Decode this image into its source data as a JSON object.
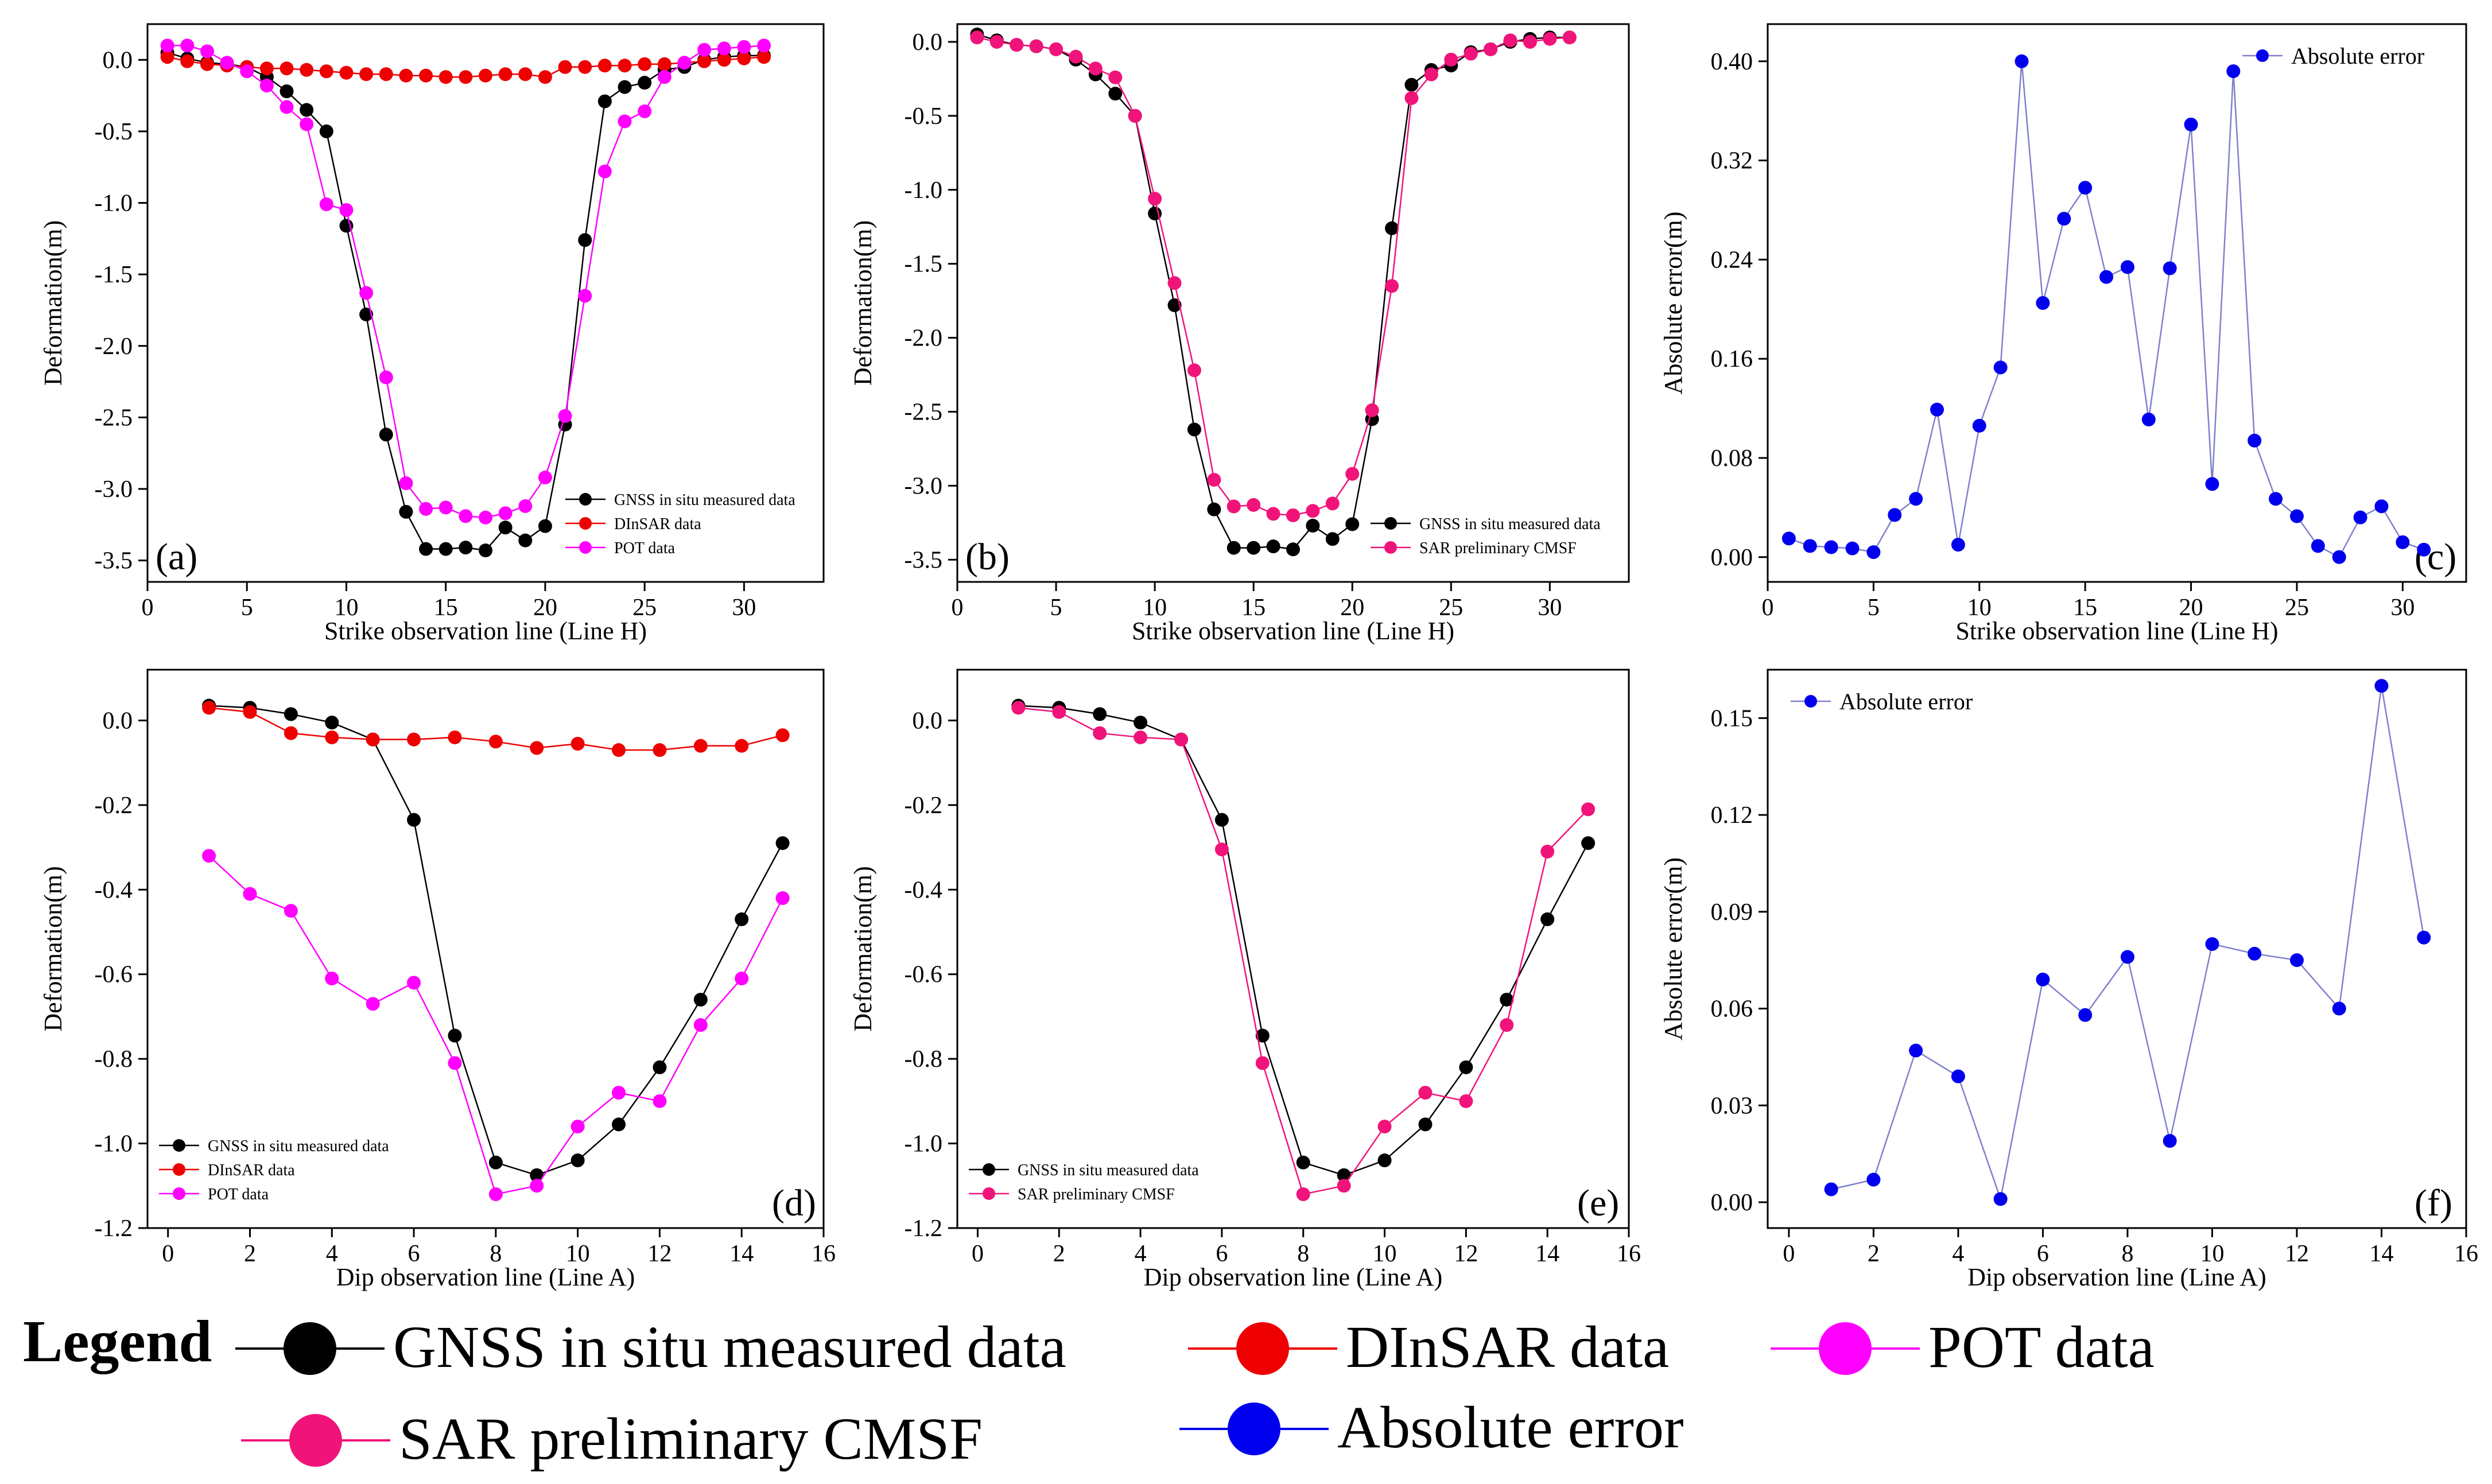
{
  "colors": {
    "gnss": "#000000",
    "dinsar": "#ee0000",
    "pot": "#ff00ff",
    "cmsf": "#f0147a",
    "abs_error": "#0000ee",
    "abs_error_line": "#8080cc"
  },
  "legend": {
    "title": "Legend",
    "entries": [
      {
        "label": "GNSS in situ measured data",
        "color": "#000000"
      },
      {
        "label": "DInSAR data",
        "color": "#ee0000"
      },
      {
        "label": "POT data",
        "color": "#ff00ff"
      },
      {
        "label": "SAR preliminary CMSF",
        "color": "#f0147a"
      },
      {
        "label": "Absolute error",
        "color": "#0000ee"
      }
    ]
  },
  "chart_data": [
    {
      "panel": "(a)",
      "type": "line",
      "xlabel": "Strike observation line (Line H)",
      "ylabel": "Deformation(m)",
      "xlim": [
        0,
        34
      ],
      "ylim": [
        -3.65,
        0.25
      ],
      "xticks": [
        0,
        5,
        10,
        15,
        20,
        25,
        30
      ],
      "yticks": [
        0.0,
        -0.5,
        -1.0,
        -1.5,
        -2.0,
        -2.5,
        -3.0,
        -3.5
      ],
      "ytick_decimals": 1,
      "legend_position": "bottom-right",
      "x": [
        1,
        2,
        3,
        4,
        5,
        6,
        7,
        8,
        9,
        10,
        11,
        12,
        13,
        14,
        15,
        16,
        17,
        18,
        19,
        20,
        21,
        22,
        23,
        24,
        25,
        26,
        27,
        28,
        29,
        30,
        31
      ],
      "series": [
        {
          "name": "GNSS in situ measured data",
          "key": "gnss",
          "values": [
            0.05,
            0.01,
            -0.02,
            -0.03,
            -0.05,
            -0.12,
            -0.22,
            -0.35,
            -0.5,
            -1.16,
            -1.78,
            -2.62,
            -3.16,
            -3.42,
            -3.42,
            -3.41,
            -3.43,
            -3.27,
            -3.36,
            -3.26,
            -2.55,
            -1.26,
            -0.29,
            -0.19,
            -0.16,
            -0.07,
            -0.05,
            0.0,
            0.02,
            0.03,
            0.03
          ]
        },
        {
          "name": "DInSAR data",
          "key": "dinsar",
          "values": [
            0.02,
            -0.01,
            -0.03,
            -0.04,
            -0.05,
            -0.06,
            -0.06,
            -0.07,
            -0.08,
            -0.09,
            -0.1,
            -0.1,
            -0.11,
            -0.11,
            -0.12,
            -0.12,
            -0.11,
            -0.1,
            -0.1,
            -0.12,
            -0.05,
            -0.05,
            -0.04,
            -0.04,
            -0.03,
            -0.03,
            -0.02,
            -0.01,
            0.0,
            0.01,
            0.02
          ]
        },
        {
          "name": "POT data",
          "key": "pot",
          "values": [
            0.1,
            0.1,
            0.06,
            -0.02,
            -0.08,
            -0.18,
            -0.33,
            -0.45,
            -1.01,
            -1.05,
            -1.63,
            -2.22,
            -2.96,
            -3.14,
            -3.13,
            -3.19,
            -3.2,
            -3.17,
            -3.12,
            -2.92,
            -2.49,
            -1.65,
            -0.78,
            -0.43,
            -0.36,
            -0.12,
            -0.02,
            0.07,
            0.08,
            0.09,
            0.1
          ]
        }
      ]
    },
    {
      "panel": "(b)",
      "type": "line",
      "xlabel": "Strike observation line (Line H)",
      "ylabel": "Deformation(m)",
      "xlim": [
        0,
        34
      ],
      "ylim": [
        -3.65,
        0.12
      ],
      "xticks": [
        0,
        5,
        10,
        15,
        20,
        25,
        30
      ],
      "yticks": [
        0.0,
        -0.5,
        -1.0,
        -1.5,
        -2.0,
        -2.5,
        -3.0,
        -3.5
      ],
      "ytick_decimals": 1,
      "legend_position": "bottom-right",
      "x": [
        1,
        2,
        3,
        4,
        5,
        6,
        7,
        8,
        9,
        10,
        11,
        12,
        13,
        14,
        15,
        16,
        17,
        18,
        19,
        20,
        21,
        22,
        23,
        24,
        25,
        26,
        27,
        28,
        29,
        30,
        31
      ],
      "series": [
        {
          "name": "GNSS in situ measured data",
          "key": "gnss",
          "values": [
            0.05,
            0.01,
            -0.02,
            -0.03,
            -0.05,
            -0.12,
            -0.22,
            -0.35,
            -0.5,
            -1.16,
            -1.78,
            -2.62,
            -3.16,
            -3.42,
            -3.42,
            -3.41,
            -3.43,
            -3.27,
            -3.36,
            -3.26,
            -2.55,
            -1.26,
            -0.29,
            -0.19,
            -0.16,
            -0.07,
            -0.05,
            0.0,
            0.02,
            0.03,
            0.03
          ]
        },
        {
          "name": "SAR preliminary CMSF",
          "key": "cmsf",
          "values": [
            0.03,
            0.0,
            -0.02,
            -0.03,
            -0.05,
            -0.1,
            -0.18,
            -0.24,
            -0.5,
            -1.06,
            -1.63,
            -2.22,
            -2.96,
            -3.14,
            -3.13,
            -3.19,
            -3.2,
            -3.17,
            -3.12,
            -2.92,
            -2.49,
            -1.65,
            -0.38,
            -0.22,
            -0.12,
            -0.08,
            -0.05,
            0.01,
            0.0,
            0.02,
            0.03
          ]
        }
      ]
    },
    {
      "panel": "(c)",
      "type": "line",
      "xlabel": "Strike observation line (Line H)",
      "ylabel": "Absolute error(m)",
      "xlim": [
        0,
        33
      ],
      "ylim": [
        -0.02,
        0.43
      ],
      "xticks": [
        0,
        5,
        10,
        15,
        20,
        25,
        30
      ],
      "yticks": [
        0.0,
        0.08,
        0.16,
        0.24,
        0.32,
        0.4
      ],
      "ytick_decimals": 2,
      "legend_position": "top-right",
      "x": [
        1,
        2,
        3,
        4,
        5,
        6,
        7,
        8,
        9,
        10,
        11,
        12,
        13,
        14,
        15,
        16,
        17,
        18,
        19,
        20,
        21,
        22,
        23,
        24,
        25,
        26,
        27,
        28,
        29,
        30,
        31
      ],
      "series": [
        {
          "name": "Absolute error",
          "key": "abs_error",
          "values": [
            0.015,
            0.009,
            0.008,
            0.007,
            0.004,
            0.034,
            0.047,
            0.119,
            0.01,
            0.106,
            0.153,
            0.4,
            0.205,
            0.273,
            0.298,
            0.226,
            0.234,
            0.111,
            0.233,
            0.349,
            0.059,
            0.392,
            0.094,
            0.047,
            0.033,
            0.009,
            0.0,
            0.032,
            0.041,
            0.012,
            0.006
          ]
        }
      ]
    },
    {
      "panel": "(d)",
      "type": "line",
      "xlabel": "Dip observation line (Line A)",
      "ylabel": "Deformation(m)",
      "xlim": [
        -0.5,
        16
      ],
      "ylim": [
        -1.2,
        0.12
      ],
      "xticks": [
        0,
        2,
        4,
        6,
        8,
        10,
        12,
        14,
        16
      ],
      "yticks": [
        0.0,
        -0.2,
        -0.4,
        -0.6,
        -0.8,
        -1.0,
        -1.2
      ],
      "ytick_decimals": 1,
      "legend_position": "bottom-left",
      "x": [
        1,
        2,
        3,
        4,
        5,
        6,
        7,
        8,
        9,
        10,
        11,
        12,
        13,
        14,
        15
      ],
      "series": [
        {
          "name": "GNSS in situ measured data",
          "key": "gnss",
          "values": [
            0.035,
            0.03,
            0.015,
            -0.005,
            -0.045,
            -0.235,
            -0.745,
            -1.045,
            -1.075,
            -1.04,
            -0.955,
            -0.82,
            -0.66,
            -0.47,
            -0.29
          ]
        },
        {
          "name": "DInSAR data",
          "key": "dinsar",
          "values": [
            0.03,
            0.02,
            -0.03,
            -0.04,
            -0.045,
            -0.045,
            -0.04,
            -0.05,
            -0.065,
            -0.055,
            -0.07,
            -0.07,
            -0.06,
            -0.06,
            -0.035
          ]
        },
        {
          "name": "POT data",
          "key": "pot",
          "values": [
            -0.32,
            -0.41,
            -0.45,
            -0.61,
            -0.67,
            -0.62,
            -0.81,
            -1.12,
            -1.1,
            -0.96,
            -0.88,
            -0.9,
            -0.72,
            -0.61,
            -0.42
          ]
        }
      ]
    },
    {
      "panel": "(e)",
      "type": "line",
      "xlabel": "Dip observation line (Line A)",
      "ylabel": "Deformation(m)",
      "xlim": [
        -0.5,
        16
      ],
      "ylim": [
        -1.2,
        0.12
      ],
      "xticks": [
        0,
        2,
        4,
        6,
        8,
        10,
        12,
        14,
        16
      ],
      "yticks": [
        0.0,
        -0.2,
        -0.4,
        -0.6,
        -0.8,
        -1.0,
        -1.2
      ],
      "ytick_decimals": 1,
      "legend_position": "bottom-left",
      "x": [
        1,
        2,
        3,
        4,
        5,
        6,
        7,
        8,
        9,
        10,
        11,
        12,
        13,
        14,
        15
      ],
      "series": [
        {
          "name": "GNSS in situ measured data",
          "key": "gnss",
          "values": [
            0.035,
            0.03,
            0.015,
            -0.005,
            -0.045,
            -0.235,
            -0.745,
            -1.045,
            -1.075,
            -1.04,
            -0.955,
            -0.82,
            -0.66,
            -0.47,
            -0.29
          ]
        },
        {
          "name": "SAR preliminary CMSF",
          "key": "cmsf",
          "values": [
            0.03,
            0.02,
            -0.03,
            -0.04,
            -0.045,
            -0.305,
            -0.81,
            -1.12,
            -1.1,
            -0.96,
            -0.88,
            -0.9,
            -0.72,
            -0.31,
            -0.21
          ]
        }
      ]
    },
    {
      "panel": "(f)",
      "type": "line",
      "xlabel": "Dip observation line (Line A)",
      "ylabel": "Absolute error(m)",
      "xlim": [
        -0.5,
        16
      ],
      "ylim": [
        -0.008,
        0.165
      ],
      "xticks": [
        0,
        2,
        4,
        6,
        8,
        10,
        12,
        14,
        16
      ],
      "yticks": [
        0.0,
        0.03,
        0.06,
        0.09,
        0.12,
        0.15
      ],
      "ytick_decimals": 2,
      "legend_position": "top-left",
      "x": [
        1,
        2,
        3,
        4,
        5,
        6,
        7,
        8,
        9,
        10,
        11,
        12,
        13,
        14,
        15
      ],
      "series": [
        {
          "name": "Absolute error",
          "key": "abs_error",
          "values": [
            0.004,
            0.007,
            0.047,
            0.039,
            0.001,
            0.069,
            0.058,
            0.076,
            0.019,
            0.08,
            0.077,
            0.075,
            0.06,
            0.16,
            0.082
          ]
        }
      ]
    }
  ]
}
